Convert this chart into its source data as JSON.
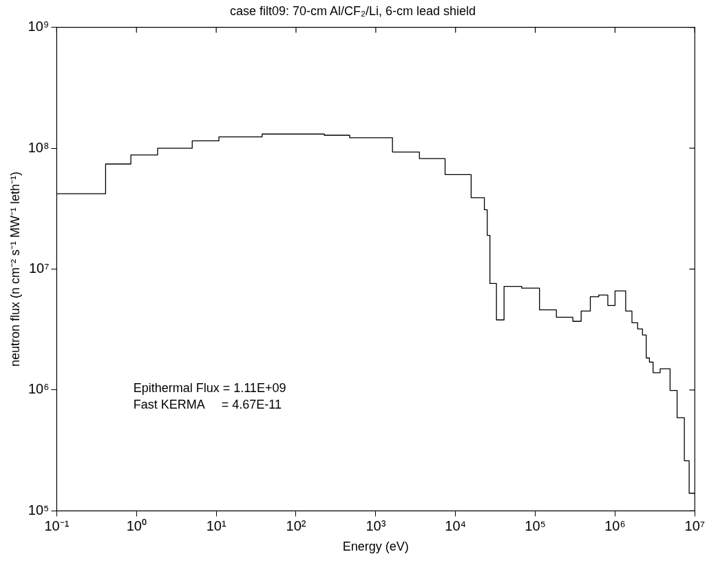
{
  "chart_data": {
    "type": "histogram",
    "title": "case filt09: 70-cm Al/CF₂/Li, 6-cm lead shield",
    "xlabel": "Energy (eV)",
    "ylabel": "neutron flux (n cm⁻² s⁻¹ MW⁻¹ leth⁻¹)",
    "bins": [
      0.1,
      0.41,
      0.85,
      1.84,
      5.0,
      10.8,
      37.6,
      226,
      471,
      1620,
      3530,
      7400,
      15700,
      23000,
      25000,
      27000,
      32600,
      40600,
      67600,
      113000,
      184000,
      296000,
      376000,
      490000,
      625000,
      812000,
      1000000,
      1360000,
      1630000,
      1920000,
      2210000,
      2460000,
      2700000,
      3000000,
      3680000,
      4900000,
      6000000,
      7400000,
      8500000,
      10000000
    ],
    "values": [
      42000000.0,
      74000000.0,
      88000000.0,
      100000000.0,
      115000000.0,
      124000000.0,
      131000000.0,
      128000000.0,
      122000000.0,
      93000000.0,
      82000000.0,
      60500000.0,
      39000000.0,
      31000000.0,
      19000000.0,
      7600000.0,
      3800000.0,
      7200000.0,
      6950000.0,
      4600000.0,
      4000000.0,
      3700000.0,
      4500000.0,
      5900000.0,
      6100000.0,
      5000000.0,
      6600000.0,
      4500000.0,
      3600000.0,
      3200000.0,
      2850000.0,
      1840000.0,
      1700000.0,
      1390000.0,
      1500000.0,
      990000.0,
      590000.0,
      260000.0,
      140000.0
    ],
    "color": "#000000",
    "log": "xy",
    "grid": false,
    "legend": false,
    "xlim": [
      0.1,
      10000000
    ],
    "ylim": [
      100000,
      1000000000
    ],
    "xticks": [
      {
        "value": 0.1,
        "label": "10⁻¹"
      },
      {
        "value": 1,
        "label": "10⁰"
      },
      {
        "value": 10,
        "label": "10¹"
      },
      {
        "value": 100,
        "label": "10²"
      },
      {
        "value": 1000,
        "label": "10³"
      },
      {
        "value": 10000,
        "label": "10⁴"
      },
      {
        "value": 100000,
        "label": "10⁵"
      },
      {
        "value": 1000000,
        "label": "10⁶"
      },
      {
        "value": 10000000,
        "label": "10⁷"
      }
    ],
    "yticks": [
      {
        "value": 100000,
        "label": "10⁵"
      },
      {
        "value": 1000000,
        "label": "10⁶"
      },
      {
        "value": 10000000,
        "label": "10⁷"
      },
      {
        "value": 100000000,
        "label": "10⁸"
      },
      {
        "value": 1000000000,
        "label": "10⁹"
      }
    ],
    "annotations": [
      "Epithermal Flux = 1.11E+09",
      "Fast KERMA     = 4.67E-11"
    ]
  }
}
